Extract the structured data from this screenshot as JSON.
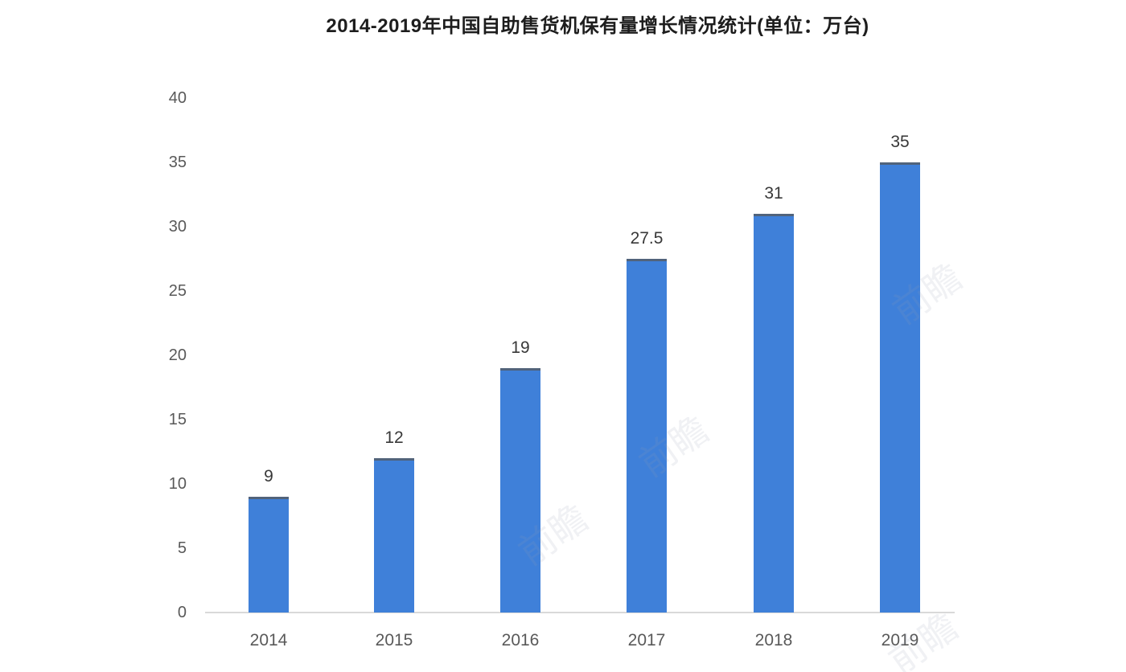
{
  "chart_data": {
    "type": "bar",
    "title": "2014-2019年中国自助售货机保有量增长情况统计(单位：万台)",
    "unit": "万台",
    "categories": [
      "2014",
      "2015",
      "2016",
      "2017",
      "2018",
      "2019"
    ],
    "values": [
      9,
      12,
      19,
      27.5,
      31,
      35
    ],
    "value_labels": [
      "9",
      "12",
      "19",
      "27.5",
      "31",
      "35"
    ],
    "yticks": [
      0,
      5,
      10,
      15,
      20,
      25,
      30,
      35,
      40
    ],
    "ylim": [
      0,
      40
    ],
    "xlabel": "",
    "ylabel": "",
    "grid": false,
    "legend": "none",
    "colors": {
      "bar": "#3f80d9",
      "bar_top_edge": "#51637b",
      "axis_line": "#d9d9d9",
      "tick_label": "#595959",
      "data_label": "#383838",
      "title": "#1d1d1d",
      "background": "#ffffff"
    }
  },
  "watermark": {
    "text": "前瞻"
  }
}
